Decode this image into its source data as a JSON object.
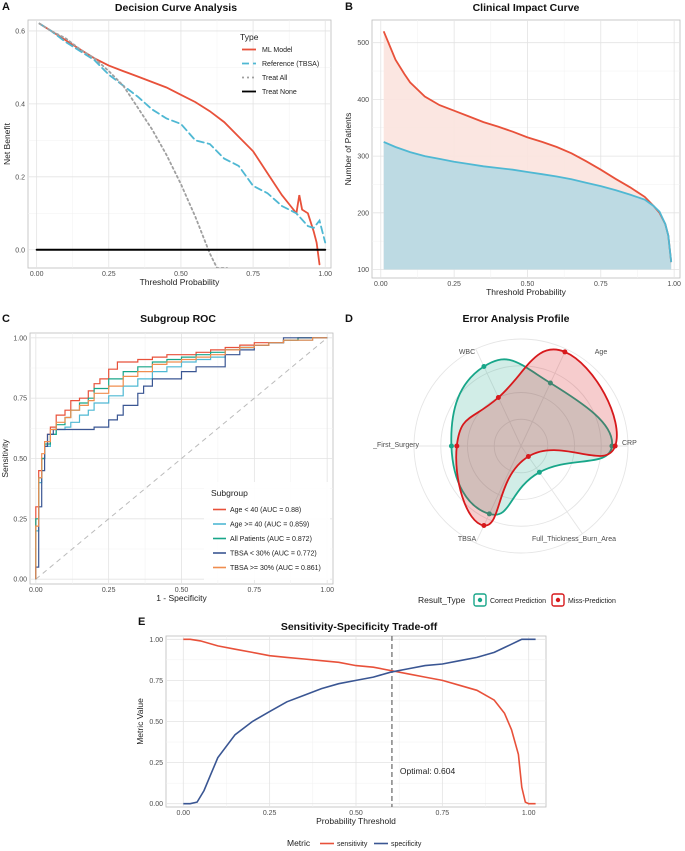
{
  "colors": {
    "red": "#E8513A",
    "teal": "#18A689",
    "lightblue": "#4FB8D3",
    "navy": "#3A5693",
    "orange": "#F08D4F",
    "grey_dash": "#a0a0a0",
    "black": "#000000",
    "red_fill": "#FBE3DE",
    "blue_fill": "#BDDAE3"
  },
  "chart_data": [
    {
      "panel": "A",
      "type": "line",
      "title": "Decision Curve Analysis",
      "xlabel": "Threshold Probability",
      "ylabel": "Net Benefit",
      "xlim": [
        -0.03,
        1.02
      ],
      "ylim": [
        -0.05,
        0.63
      ],
      "xticks": [
        0,
        0.25,
        0.5,
        0.75,
        1
      ],
      "xtick_labels": [
        "0.00",
        "0.25",
        "0.50",
        "0.75",
        "1.00"
      ],
      "yticks": [
        0,
        0.2,
        0.4,
        0.6
      ],
      "ytick_labels": [
        "0.0",
        "0.2",
        "0.4",
        "0.6"
      ],
      "grid": true,
      "legend": {
        "title": "Type",
        "position": "top-right"
      },
      "series": [
        {
          "name": "ML Model",
          "color": "#E8513A",
          "style": "solid",
          "x": [
            0.01,
            0.05,
            0.1,
            0.15,
            0.2,
            0.25,
            0.3,
            0.35,
            0.4,
            0.45,
            0.5,
            0.55,
            0.6,
            0.65,
            0.7,
            0.75,
            0.8,
            0.85,
            0.88,
            0.9,
            0.91,
            0.92,
            0.94,
            0.96,
            0.97,
            0.98
          ],
          "y": [
            0.62,
            0.6,
            0.575,
            0.55,
            0.525,
            0.505,
            0.49,
            0.475,
            0.46,
            0.445,
            0.425,
            0.405,
            0.38,
            0.35,
            0.31,
            0.27,
            0.21,
            0.15,
            0.12,
            0.1,
            0.15,
            0.11,
            0.1,
            0.05,
            0.02,
            -0.04
          ]
        },
        {
          "name": "Reference (TBSA)",
          "color": "#4FB8D3",
          "style": "dashed",
          "x": [
            0.01,
            0.05,
            0.1,
            0.15,
            0.2,
            0.25,
            0.3,
            0.35,
            0.4,
            0.45,
            0.5,
            0.55,
            0.6,
            0.65,
            0.7,
            0.75,
            0.8,
            0.85,
            0.9,
            0.94,
            0.96,
            0.98,
            1.0
          ],
          "y": [
            0.62,
            0.6,
            0.57,
            0.545,
            0.52,
            0.48,
            0.45,
            0.42,
            0.385,
            0.36,
            0.345,
            0.3,
            0.29,
            0.25,
            0.23,
            0.175,
            0.155,
            0.12,
            0.1,
            0.065,
            0.06,
            0.08,
            0.02
          ]
        },
        {
          "name": "Treat All",
          "color": "#a0a0a0",
          "style": "dotted",
          "x": [
            0.01,
            0.05,
            0.1,
            0.15,
            0.2,
            0.25,
            0.3,
            0.35,
            0.4,
            0.45,
            0.5,
            0.55,
            0.6,
            0.625,
            0.66
          ],
          "y": [
            0.62,
            0.6,
            0.58,
            0.55,
            0.525,
            0.49,
            0.45,
            0.39,
            0.33,
            0.26,
            0.18,
            0.09,
            -0.01,
            -0.05,
            -0.05
          ]
        },
        {
          "name": "Treat None",
          "color": "#000000",
          "style": "solid",
          "x": [
            0,
            1
          ],
          "y": [
            0,
            0
          ]
        }
      ]
    },
    {
      "panel": "B",
      "type": "area",
      "title": "Clinical Impact Curve",
      "xlabel": "Threshold Probability",
      "ylabel": "Number of Patients",
      "xlim": [
        -0.03,
        1.02
      ],
      "ylim": [
        85,
        540
      ],
      "xticks": [
        0,
        0.25,
        0.5,
        0.75,
        1
      ],
      "xtick_labels": [
        "0.00",
        "0.25",
        "0.50",
        "0.75",
        "1.00"
      ],
      "yticks": [
        100,
        200,
        300,
        400,
        500
      ],
      "ytick_labels": [
        "100",
        "200",
        "300",
        "400",
        "500"
      ],
      "grid": true,
      "series": [
        {
          "color": "#E8513A",
          "fill": "#FBE3DE",
          "x": [
            0.01,
            0.03,
            0.05,
            0.08,
            0.1,
            0.15,
            0.2,
            0.25,
            0.3,
            0.35,
            0.4,
            0.45,
            0.5,
            0.55,
            0.6,
            0.65,
            0.7,
            0.75,
            0.8,
            0.85,
            0.9,
            0.93,
            0.95,
            0.97,
            0.98,
            0.99
          ],
          "y": [
            520,
            495,
            470,
            445,
            430,
            405,
            390,
            380,
            370,
            360,
            352,
            343,
            333,
            325,
            316,
            305,
            291,
            276,
            260,
            245,
            228,
            212,
            200,
            180,
            160,
            113
          ]
        },
        {
          "color": "#4FB8D3",
          "fill": "#BDDAE3",
          "x": [
            0.01,
            0.05,
            0.1,
            0.15,
            0.2,
            0.25,
            0.3,
            0.35,
            0.4,
            0.45,
            0.5,
            0.55,
            0.6,
            0.65,
            0.7,
            0.75,
            0.8,
            0.85,
            0.9,
            0.93,
            0.95,
            0.97,
            0.98,
            0.99
          ],
          "y": [
            325,
            316,
            307,
            300,
            295,
            290,
            286,
            282,
            279,
            276,
            272,
            268,
            264,
            259,
            253,
            247,
            240,
            232,
            223,
            212,
            202,
            180,
            160,
            113
          ]
        }
      ]
    },
    {
      "panel": "C",
      "type": "line",
      "title": "Subgroup ROC",
      "xlabel": "1 - Specificity",
      "ylabel": "Sensitivity",
      "xlim": [
        -0.02,
        1.02
      ],
      "ylim": [
        -0.02,
        1.02
      ],
      "xticks": [
        0,
        0.25,
        0.5,
        0.75,
        1
      ],
      "xtick_labels": [
        "0.00",
        "0.25",
        "0.50",
        "0.75",
        "1.00"
      ],
      "yticks": [
        0,
        0.25,
        0.5,
        0.75,
        1
      ],
      "ytick_labels": [
        "0.00",
        "0.25",
        "0.50",
        "0.75",
        "1.00"
      ],
      "grid": true,
      "legend": {
        "title": "Subgroup",
        "position": "bottom-right"
      },
      "series": [
        {
          "name": "Age < 40 (AUC = 0.88)",
          "color": "#E8513A",
          "x": [
            0,
            0.01,
            0.02,
            0.03,
            0.04,
            0.05,
            0.07,
            0.1,
            0.12,
            0.15,
            0.18,
            0.2,
            0.22,
            0.25,
            0.28,
            0.3,
            0.35,
            0.4,
            0.45,
            0.5,
            0.55,
            0.6,
            0.65,
            0.7,
            0.75,
            0.8,
            0.85,
            0.9,
            0.95,
            1
          ],
          "y": [
            0,
            0.3,
            0.45,
            0.5,
            0.55,
            0.6,
            0.63,
            0.68,
            0.7,
            0.74,
            0.75,
            0.78,
            0.81,
            0.83,
            0.87,
            0.9,
            0.9,
            0.91,
            0.92,
            0.93,
            0.93,
            0.94,
            0.95,
            0.96,
            0.97,
            0.98,
            0.98,
            0.99,
            1,
            1
          ]
        },
        {
          "name": "Age >= 40 (AUC = 0.859)",
          "color": "#4FB8D3",
          "x": [
            0,
            0.01,
            0.02,
            0.03,
            0.05,
            0.07,
            0.1,
            0.12,
            0.15,
            0.18,
            0.2,
            0.25,
            0.3,
            0.35,
            0.4,
            0.45,
            0.5,
            0.55,
            0.6,
            0.65,
            0.7,
            0.75,
            0.8,
            0.85,
            0.9,
            0.95,
            1
          ],
          "y": [
            0,
            0.2,
            0.4,
            0.5,
            0.55,
            0.6,
            0.62,
            0.63,
            0.65,
            0.68,
            0.7,
            0.73,
            0.76,
            0.8,
            0.83,
            0.86,
            0.88,
            0.9,
            0.91,
            0.92,
            0.95,
            0.96,
            0.97,
            0.98,
            0.99,
            0.99,
            1
          ]
        },
        {
          "name": "All Patients (AUC = 0.872)",
          "color": "#18A689",
          "x": [
            0,
            0.01,
            0.02,
            0.03,
            0.05,
            0.07,
            0.1,
            0.12,
            0.15,
            0.18,
            0.2,
            0.25,
            0.3,
            0.35,
            0.4,
            0.45,
            0.5,
            0.55,
            0.6,
            0.65,
            0.7,
            0.75,
            0.8,
            0.85,
            0.9,
            0.95,
            1
          ],
          "y": [
            0,
            0.25,
            0.42,
            0.5,
            0.56,
            0.6,
            0.64,
            0.67,
            0.7,
            0.73,
            0.75,
            0.79,
            0.83,
            0.86,
            0.88,
            0.9,
            0.91,
            0.92,
            0.93,
            0.94,
            0.95,
            0.96,
            0.97,
            0.98,
            0.99,
            1,
            1
          ]
        },
        {
          "name": "TBSA < 30% (AUC = 0.772)",
          "color": "#3A5693",
          "x": [
            0,
            0.01,
            0.02,
            0.03,
            0.04,
            0.06,
            0.08,
            0.1,
            0.15,
            0.2,
            0.25,
            0.28,
            0.3,
            0.35,
            0.37,
            0.4,
            0.45,
            0.5,
            0.55,
            0.6,
            0.65,
            0.7,
            0.75,
            0.8,
            0.85,
            0.9,
            0.95,
            1
          ],
          "y": [
            0,
            0.05,
            0.3,
            0.45,
            0.55,
            0.6,
            0.62,
            0.62,
            0.62,
            0.62,
            0.63,
            0.66,
            0.68,
            0.72,
            0.77,
            0.8,
            0.83,
            0.83,
            0.86,
            0.88,
            0.88,
            0.93,
            0.95,
            0.97,
            0.98,
            1,
            1,
            1
          ]
        },
        {
          "name": "TBSA >= 30% (AUC = 0.861)",
          "color": "#F08D4F",
          "x": [
            0,
            0.01,
            0.02,
            0.03,
            0.05,
            0.07,
            0.1,
            0.12,
            0.15,
            0.18,
            0.2,
            0.25,
            0.3,
            0.35,
            0.4,
            0.45,
            0.5,
            0.55,
            0.6,
            0.65,
            0.7,
            0.75,
            0.8,
            0.85,
            0.9,
            0.95,
            1
          ],
          "y": [
            0,
            0.22,
            0.42,
            0.52,
            0.57,
            0.62,
            0.65,
            0.67,
            0.7,
            0.72,
            0.74,
            0.77,
            0.8,
            0.84,
            0.86,
            0.89,
            0.9,
            0.91,
            0.92,
            0.93,
            0.95,
            0.96,
            0.97,
            0.98,
            0.99,
            0.99,
            1
          ]
        }
      ]
    },
    {
      "panel": "D",
      "type": "radar",
      "title": "Error Analysis Profile",
      "axes": [
        "Age",
        "CRP",
        "Full_Thickness_Burn_Area",
        "TBSA",
        "First_Surgery",
        "WBC"
      ],
      "axis_labels": [
        "Age",
        "CRP",
        "Full_Thickness_Burn_Area",
        "TBSA",
        "_First_Surgery",
        "WBC"
      ],
      "legend": {
        "title": "Result_Type",
        "position": "bottom"
      },
      "series": [
        {
          "name": "Correct Prediction",
          "color": "#18A689",
          "values": [
            0.65,
            0.85,
            0.3,
            0.7,
            0.65,
            0.82
          ]
        },
        {
          "name": "Miss-Prediction",
          "color": "#D7191C",
          "values": [
            0.97,
            0.88,
            0.12,
            0.82,
            0.6,
            0.5
          ]
        }
      ]
    },
    {
      "panel": "E",
      "type": "line",
      "title": "Sensitivity-Specificity Trade-off",
      "xlabel": "Probability Threshold",
      "ylabel": "Metric Value",
      "xlim": [
        -0.05,
        1.05
      ],
      "ylim": [
        -0.02,
        1.02
      ],
      "xticks": [
        0,
        0.25,
        0.5,
        0.75,
        1
      ],
      "xtick_labels": [
        "0.00",
        "0.25",
        "0.50",
        "0.75",
        "1.00"
      ],
      "yticks": [
        0,
        0.25,
        0.5,
        0.75,
        1
      ],
      "ytick_labels": [
        "0.00",
        "0.25",
        "0.50",
        "0.75",
        "1.00"
      ],
      "grid": true,
      "optimal_threshold": 0.604,
      "annotation": "Optimal: 0.604",
      "legend": {
        "title": "Metric",
        "position": "bottom"
      },
      "series": [
        {
          "name": "sensitivity",
          "color": "#E8513A",
          "x": [
            0,
            0.02,
            0.05,
            0.1,
            0.15,
            0.2,
            0.25,
            0.3,
            0.35,
            0.4,
            0.45,
            0.5,
            0.55,
            0.6,
            0.65,
            0.7,
            0.75,
            0.8,
            0.85,
            0.9,
            0.93,
            0.95,
            0.97,
            0.98,
            0.99,
            1.0,
            1.02
          ],
          "y": [
            1,
            1,
            0.99,
            0.96,
            0.94,
            0.92,
            0.9,
            0.89,
            0.88,
            0.87,
            0.86,
            0.84,
            0.83,
            0.81,
            0.79,
            0.77,
            0.75,
            0.72,
            0.69,
            0.63,
            0.55,
            0.45,
            0.3,
            0.1,
            0.01,
            0,
            0
          ]
        },
        {
          "name": "specificity",
          "color": "#3A5693",
          "x": [
            0,
            0.02,
            0.04,
            0.06,
            0.08,
            0.1,
            0.15,
            0.2,
            0.25,
            0.3,
            0.35,
            0.4,
            0.45,
            0.5,
            0.55,
            0.6,
            0.65,
            0.7,
            0.75,
            0.8,
            0.85,
            0.9,
            0.93,
            0.95,
            0.97,
            0.98,
            1.0,
            1.02
          ],
          "y": [
            0,
            0,
            0.01,
            0.08,
            0.18,
            0.28,
            0.42,
            0.5,
            0.56,
            0.62,
            0.66,
            0.7,
            0.73,
            0.75,
            0.77,
            0.8,
            0.82,
            0.84,
            0.85,
            0.87,
            0.89,
            0.92,
            0.95,
            0.97,
            0.99,
            1,
            1,
            1
          ]
        }
      ]
    }
  ]
}
